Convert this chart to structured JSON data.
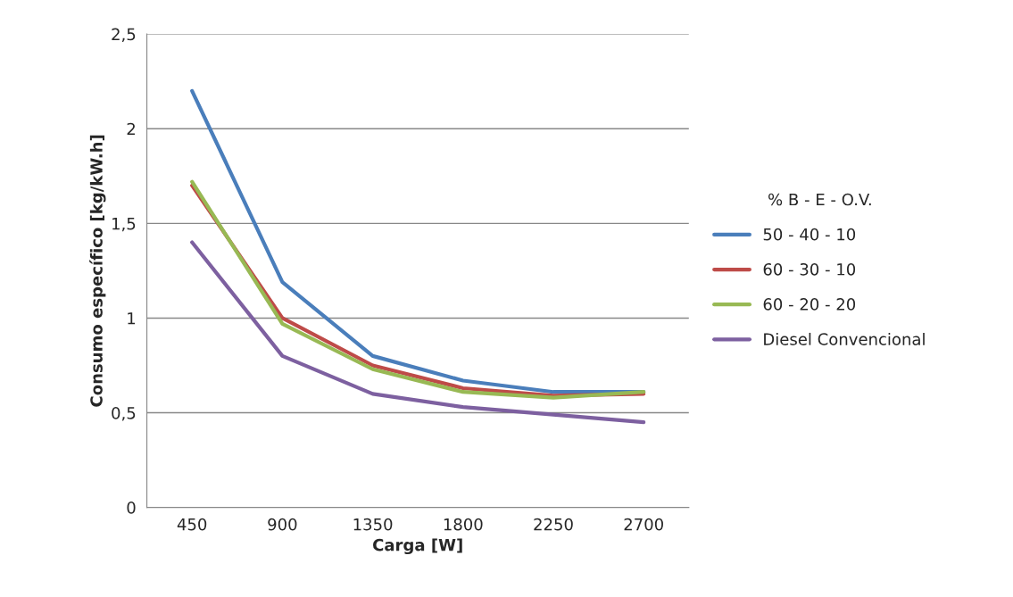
{
  "chart_data": {
    "type": "line",
    "xlabel": "Carga [W]",
    "ylabel": "Consumo específico [kg/kW.h]",
    "legend_title": "% B - E - O.V.",
    "categories": [
      "450",
      "900",
      "1350",
      "1800",
      "2250",
      "2700"
    ],
    "series": [
      {
        "name": "50 - 40 - 10",
        "color": "#4a7ebb",
        "values": [
          2.2,
          1.19,
          0.8,
          0.67,
          0.61,
          0.61
        ]
      },
      {
        "name": "60 - 30 - 10",
        "color": "#be4b48",
        "values": [
          1.7,
          1.0,
          0.75,
          0.63,
          0.59,
          0.6
        ]
      },
      {
        "name": "60 - 20 - 20",
        "color": "#98b954",
        "values": [
          1.72,
          0.97,
          0.73,
          0.61,
          0.58,
          0.61
        ]
      },
      {
        "name": "Diesel Convencional",
        "color": "#7d60a0",
        "values": [
          1.4,
          0.8,
          0.6,
          0.53,
          0.49,
          0.45
        ]
      }
    ],
    "ylim": [
      0,
      2.5
    ],
    "yticks": [
      0,
      {
        "value": 0.5,
        "label": "0,5"
      },
      1,
      {
        "value": 1.5,
        "label": "1,5"
      },
      2,
      {
        "value": 2.5,
        "label": "2,5"
      }
    ],
    "grid": "y",
    "legend": "right",
    "marker": "none",
    "line_style": "solid"
  }
}
